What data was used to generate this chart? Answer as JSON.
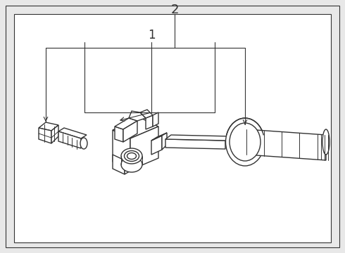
{
  "bg_color": "#e8e8e8",
  "inner_bg": "#f0f0f0",
  "white": "#ffffff",
  "lc": "#333333",
  "lw": 1.0,
  "lw_thin": 0.7,
  "label_1": "1",
  "label_2": "2",
  "fig_w": 4.9,
  "fig_h": 3.6,
  "dpi": 100
}
